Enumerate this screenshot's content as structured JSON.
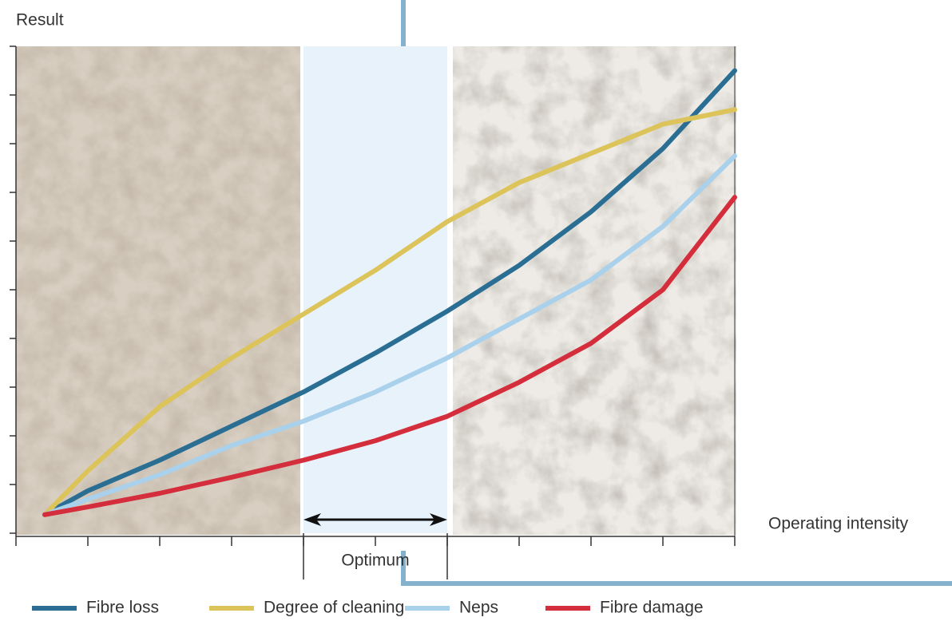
{
  "chart_data": {
    "type": "line",
    "y_label": "Result",
    "x_label": "Operating intensity",
    "optimum_label": "Optimum",
    "xlim": [
      0,
      10
    ],
    "ylim": [
      0,
      10
    ],
    "xticks": [
      0,
      1,
      2,
      3,
      4,
      5,
      6,
      7,
      8,
      9,
      10
    ],
    "yticks": [
      0,
      1,
      2,
      3,
      4,
      5,
      6,
      7,
      8,
      9,
      10
    ],
    "optimum": [
      4,
      6
    ],
    "x": [
      0.4,
      1,
      2,
      3,
      4,
      5,
      6,
      7,
      8,
      9,
      10
    ],
    "series": [
      {
        "name": "Fibre loss",
        "color": "#2a6f93",
        "values": [
          0.38,
          0.87,
          1.5,
          2.2,
          2.9,
          3.7,
          4.56,
          5.5,
          6.6,
          7.9,
          9.5
        ]
      },
      {
        "name": "Degree of cleaning",
        "color": "#dcc45a",
        "values": [
          0.38,
          1.28,
          2.6,
          3.6,
          4.5,
          5.4,
          6.4,
          7.2,
          7.8,
          8.4,
          8.7
        ]
      },
      {
        "name": "Neps",
        "color": "#a9d1ec",
        "values": [
          0.38,
          0.7,
          1.2,
          1.8,
          2.3,
          2.9,
          3.6,
          4.4,
          5.2,
          6.3,
          7.75
        ]
      },
      {
        "name": "Fibre damage",
        "color": "#d42e3c",
        "values": [
          0.38,
          0.54,
          0.82,
          1.15,
          1.5,
          1.9,
          2.4,
          3.1,
          3.9,
          5.0,
          6.9
        ]
      }
    ]
  }
}
